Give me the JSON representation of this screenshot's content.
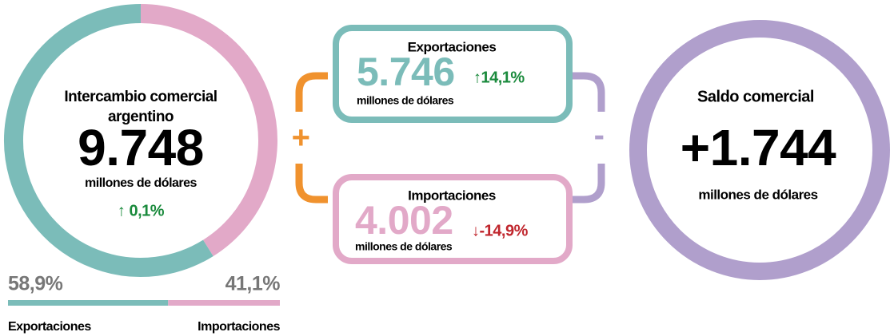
{
  "chart_data": {
    "type": "pie",
    "title": "Intercambio comercial",
    "subtitle": "argentino",
    "total": "9.748",
    "unit": "millones de dólares",
    "change": "↑ 0,1%",
    "categories": [
      "Exportaciones",
      "Importaciones"
    ],
    "values": [
      58.9,
      41.1
    ],
    "value_labels": [
      "58,9%",
      "41,1%"
    ],
    "colors": [
      "#7bbcb9",
      "#e2a9c8"
    ]
  },
  "exports": {
    "title": "Exportaciones",
    "value": "5.746",
    "unit": "millones de dólares",
    "change": "↑14,1%"
  },
  "imports": {
    "title": "Importaciones",
    "value": "4.002",
    "unit": "millones de dólares",
    "change": "↓-14,9%"
  },
  "operators": {
    "plus": "+",
    "minus": "-"
  },
  "balance": {
    "title": "Saldo comercial",
    "value": "+1.744",
    "unit": "millones de dólares"
  }
}
